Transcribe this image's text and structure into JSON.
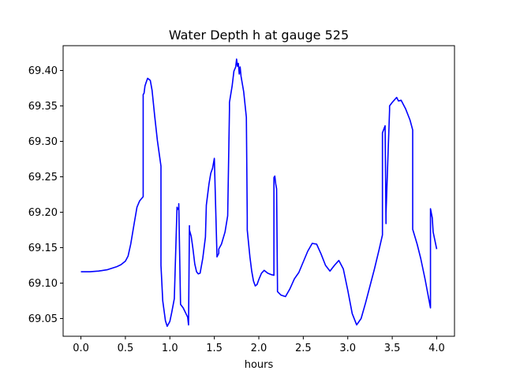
{
  "chart_data": {
    "type": "line",
    "title": "Water Depth h at gauge 525",
    "xlabel": "hours",
    "ylabel": "",
    "xlim": [
      -0.2,
      4.2
    ],
    "ylim": [
      69.025,
      69.435
    ],
    "xticks": [
      0.0,
      0.5,
      1.0,
      1.5,
      2.0,
      2.5,
      3.0,
      3.5,
      4.0
    ],
    "xtick_labels": [
      "0.0",
      "0.5",
      "1.0",
      "1.5",
      "2.0",
      "2.5",
      "3.0",
      "3.5",
      "4.0"
    ],
    "yticks": [
      69.05,
      69.1,
      69.15,
      69.2,
      69.25,
      69.3,
      69.35,
      69.4
    ],
    "ytick_labels": [
      "69.05",
      "69.10",
      "69.15",
      "69.20",
      "69.25",
      "69.30",
      "69.35",
      "69.40"
    ],
    "grid": false,
    "series": [
      {
        "color": "#0000ff",
        "x": [
          0.0,
          0.1,
          0.2,
          0.3,
          0.4,
          0.45,
          0.5,
          0.53,
          0.56,
          0.6,
          0.63,
          0.66,
          0.7,
          0.7,
          0.71,
          0.72,
          0.73,
          0.75,
          0.78,
          0.8,
          0.83,
          0.86,
          0.9,
          0.9,
          0.92,
          0.95,
          0.97,
          1.0,
          1.02,
          1.05,
          1.08,
          1.08,
          1.1,
          1.1,
          1.12,
          1.12,
          1.15,
          1.2,
          1.21,
          1.22,
          1.22,
          1.24,
          1.26,
          1.28,
          1.3,
          1.32,
          1.34,
          1.37,
          1.4,
          1.41,
          1.42,
          1.44,
          1.46,
          1.48,
          1.5,
          1.53,
          1.55,
          1.55,
          1.58,
          1.62,
          1.65,
          1.67,
          1.67,
          1.7,
          1.72,
          1.74,
          1.75,
          1.76,
          1.77,
          1.78,
          1.79,
          1.8,
          1.83,
          1.86,
          1.87,
          1.87,
          1.9,
          1.92,
          1.94,
          1.96,
          1.98,
          2.0,
          2.03,
          2.06,
          2.1,
          2.14,
          2.17,
          2.17,
          2.18,
          2.19,
          2.2,
          2.21,
          2.21,
          2.25,
          2.3,
          2.35,
          2.4,
          2.45,
          2.5,
          2.55,
          2.6,
          2.65,
          2.7,
          2.75,
          2.8,
          2.85,
          2.9,
          2.95,
          3.0,
          3.05,
          3.1,
          3.15,
          3.2,
          3.3,
          3.35,
          3.39,
          3.39,
          3.42,
          3.43,
          3.43,
          3.47,
          3.47,
          3.5,
          3.55,
          3.57,
          3.6,
          3.65,
          3.7,
          3.73,
          3.73,
          3.78,
          3.82,
          3.87,
          3.9,
          3.93,
          3.93,
          3.95,
          3.96,
          4.0
        ],
        "y": [
          69.116,
          69.116,
          69.117,
          69.119,
          69.123,
          69.126,
          69.131,
          69.138,
          69.155,
          69.185,
          69.207,
          69.216,
          69.222,
          69.366,
          69.368,
          69.378,
          69.382,
          69.389,
          69.386,
          69.372,
          69.335,
          69.301,
          69.265,
          69.125,
          69.075,
          69.047,
          69.039,
          69.046,
          69.058,
          69.078,
          69.205,
          69.207,
          69.203,
          69.212,
          69.07,
          69.07,
          69.065,
          69.052,
          69.041,
          69.181,
          69.175,
          69.166,
          69.148,
          69.127,
          69.116,
          69.113,
          69.114,
          69.135,
          69.165,
          69.21,
          69.22,
          69.24,
          69.255,
          69.262,
          69.276,
          69.137,
          69.142,
          69.148,
          69.155,
          69.172,
          69.195,
          69.345,
          69.355,
          69.378,
          69.399,
          69.405,
          69.416,
          69.406,
          69.41,
          69.395,
          69.405,
          69.392,
          69.37,
          69.334,
          69.193,
          69.175,
          69.137,
          69.117,
          69.103,
          69.096,
          69.098,
          69.105,
          69.114,
          69.118,
          69.114,
          69.112,
          69.111,
          69.249,
          69.251,
          69.24,
          69.233,
          69.095,
          69.088,
          69.083,
          69.081,
          69.092,
          69.106,
          69.115,
          69.13,
          69.145,
          69.156,
          69.155,
          69.141,
          69.125,
          69.117,
          69.125,
          69.132,
          69.12,
          69.09,
          69.057,
          69.041,
          69.05,
          69.072,
          69.12,
          69.146,
          69.168,
          69.312,
          69.322,
          69.184,
          69.198,
          69.344,
          69.35,
          69.355,
          69.362,
          69.357,
          69.358,
          69.346,
          69.33,
          69.316,
          69.176,
          69.155,
          69.135,
          69.105,
          69.085,
          69.065,
          69.205,
          69.192,
          69.172,
          69.148
        ]
      }
    ]
  }
}
